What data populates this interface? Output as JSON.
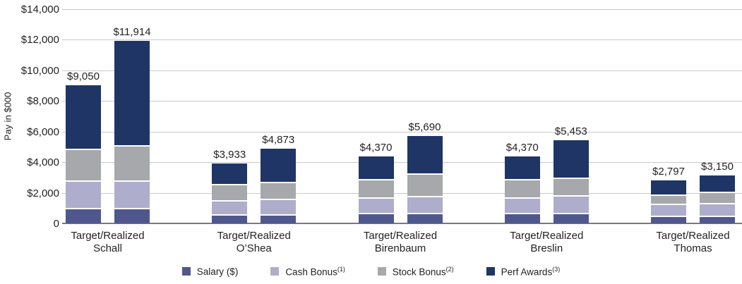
{
  "colors": {
    "grid": "#c9c9c9",
    "baseline": "#7a7a7a",
    "text": "#231f20",
    "segment_separator": "#ffffff",
    "background": "#ffffff"
  },
  "chart_data": {
    "type": "bar",
    "stacked": true,
    "title": "",
    "xlabel": "",
    "ylabel": "Pay in $000",
    "ylim": [
      0,
      14000
    ],
    "ytick_step": 2000,
    "grid": true,
    "legend_position": "bottom",
    "yticks": [
      {
        "value": 0,
        "label": "0"
      },
      {
        "value": 2000,
        "label": "$2,000"
      },
      {
        "value": 4000,
        "label": "$4,000"
      },
      {
        "value": 6000,
        "label": "$6,000"
      },
      {
        "value": 8000,
        "label": "$8,000"
      },
      {
        "value": 10000,
        "label": "$10,000"
      },
      {
        "value": 12000,
        "label": "$12,000"
      },
      {
        "value": 14000,
        "label": "$14,000"
      }
    ],
    "series": [
      {
        "name": "Salary ($)",
        "sup": "",
        "color": "#4f588d"
      },
      {
        "name": "Cash Bonus",
        "sup": "(1)",
        "color": "#aeadcb"
      },
      {
        "name": "Stock Bonus",
        "sup": "(2)",
        "color": "#a6a8ab"
      },
      {
        "name": "Perf Awards",
        "sup": "(3)",
        "color": "#1f3566"
      }
    ],
    "bar_kinds": [
      "Target",
      "Realized"
    ],
    "groups": [
      {
        "name": "Schall",
        "axis_label_line1": "Target/Realized",
        "bars": [
          {
            "kind": "Target",
            "total": 9050,
            "total_label": "$9,050",
            "segments": [
              1000,
              1800,
              2100,
              4150
            ]
          },
          {
            "kind": "Realized",
            "total": 11914,
            "total_label": "$11,914",
            "segments": [
              1000,
              1800,
              2300,
              6814
            ]
          }
        ]
      },
      {
        "name": "O’Shea",
        "axis_label_line1": "Target/Realized",
        "bars": [
          {
            "kind": "Target",
            "total": 3933,
            "total_label": "$3,933",
            "segments": [
              600,
              900,
              1100,
              1333
            ]
          },
          {
            "kind": "Realized",
            "total": 4873,
            "total_label": "$4,873",
            "segments": [
              600,
              1000,
              1100,
              2173
            ]
          }
        ]
      },
      {
        "name": "Birenbaum",
        "axis_label_line1": "Target/Realized",
        "bars": [
          {
            "kind": "Target",
            "total": 4370,
            "total_label": "$4,370",
            "segments": [
              700,
              1000,
              1200,
              1470
            ]
          },
          {
            "kind": "Realized",
            "total": 5690,
            "total_label": "$5,690",
            "segments": [
              700,
              1100,
              1450,
              2440
            ]
          }
        ]
      },
      {
        "name": "Breslin",
        "axis_label_line1": "Target/Realized",
        "bars": [
          {
            "kind": "Target",
            "total": 4370,
            "total_label": "$4,370",
            "segments": [
              700,
              1000,
              1200,
              1470
            ]
          },
          {
            "kind": "Realized",
            "total": 5453,
            "total_label": "$5,453",
            "segments": [
              700,
              1150,
              1150,
              2453
            ]
          }
        ]
      },
      {
        "name": "Thomas",
        "axis_label_line1": "Target/Realized",
        "bars": [
          {
            "kind": "Target",
            "total": 2797,
            "total_label": "$2,797",
            "segments": [
              500,
              800,
              600,
              897
            ]
          },
          {
            "kind": "Realized",
            "total": 3150,
            "total_label": "$3,150",
            "segments": [
              500,
              850,
              700,
              1100
            ]
          }
        ]
      }
    ]
  }
}
